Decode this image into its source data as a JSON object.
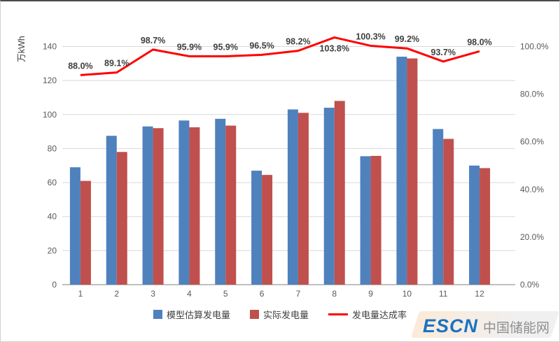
{
  "window": {
    "background": "#ffffff"
  },
  "chart_data": {
    "type": "bar",
    "subtype": "bar-line-combo",
    "title": "",
    "categories": [
      "1",
      "2",
      "3",
      "4",
      "5",
      "6",
      "7",
      "8",
      "9",
      "10",
      "11",
      "12"
    ],
    "series": [
      {
        "name": "模型估算发电量",
        "type": "bar",
        "axis": "left",
        "color": "#4F81BD",
        "values": [
          69,
          87.5,
          93,
          96.5,
          97.5,
          67,
          103,
          104,
          75.5,
          134,
          91.5,
          70
        ]
      },
      {
        "name": "实际发电量",
        "type": "bar",
        "axis": "left",
        "color": "#C0504D",
        "values": [
          61,
          78,
          92,
          92.5,
          93.5,
          64.5,
          101,
          108,
          75.7,
          133,
          85.7,
          68.5
        ]
      },
      {
        "name": "发电量达成率",
        "type": "line",
        "axis": "right",
        "color": "#FF0000",
        "values": [
          88.0,
          89.1,
          98.7,
          95.9,
          95.9,
          96.5,
          98.2,
          103.8,
          100.3,
          99.2,
          93.7,
          98.0
        ],
        "labels": [
          "88.0%",
          "89.1%",
          "98.7%",
          "95.9%",
          "95.9%",
          "96.5%",
          "98.2%",
          "103.8%",
          "100.3%",
          "99.2%",
          "93.7%",
          "98.0%"
        ]
      }
    ],
    "label_positions": [
      "above",
      "above",
      "above",
      "above",
      "above",
      "above",
      "above",
      "below",
      "above",
      "above",
      "above",
      "above"
    ],
    "left_axis": {
      "title": "万kWh",
      "min": 0,
      "max": 140,
      "step": 20,
      "tick_values": [
        0,
        20,
        40,
        60,
        80,
        100,
        120,
        140
      ],
      "tick_labels": [
        "0",
        "20",
        "40",
        "60",
        "80",
        "100",
        "120",
        "140"
      ]
    },
    "right_axis": {
      "min": 0,
      "max": 100,
      "step": 20,
      "tick_values": [
        0,
        20,
        40,
        60,
        80,
        100
      ],
      "tick_labels": [
        "0.0%",
        "20.0%",
        "40.0%",
        "60.0%",
        "80.0%",
        "100.0%"
      ]
    },
    "grid": true,
    "legend_position": "bottom"
  },
  "watermark": {
    "brand": "ESCN",
    "site": "中国储能网"
  }
}
